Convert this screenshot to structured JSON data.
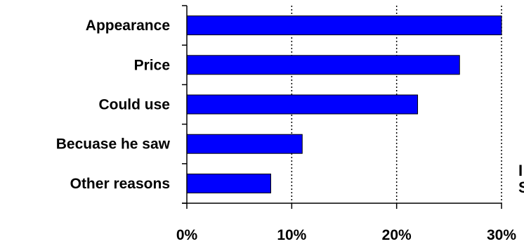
{
  "chart_data": {
    "type": "bar",
    "orientation": "horizontal",
    "categories": [
      "Appearance",
      "Price",
      "Could use",
      "Becuase he saw",
      "Other reasons"
    ],
    "values": [
      30,
      26,
      22,
      11,
      8
    ],
    "x_ticks": [
      "0%",
      "10%",
      "20%",
      "30%"
    ],
    "xlim": [
      0,
      30
    ],
    "grid": "vertical dotted lines at 10% and 20%",
    "bar_color": "#0000FF",
    "bar_edge_color": "#000000"
  },
  "side_text": [
    "I",
    "S"
  ]
}
